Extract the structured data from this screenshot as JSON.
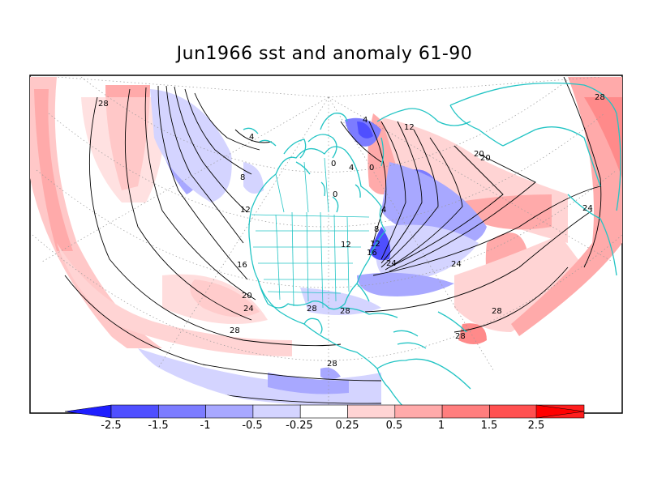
{
  "title": "Jun1966 sst and anomaly 61-90",
  "colorbar": {
    "labels": [
      "-2.5",
      "-1.5",
      "-1",
      "-0.5",
      "-0.25",
      "0.25",
      "0.5",
      "1",
      "1.5",
      "2.5"
    ],
    "colors": [
      "#1e1eff",
      "#4f4fff",
      "#7c7cff",
      "#a8a8ff",
      "#d4d4ff",
      "#ffffff",
      "#ffd4d4",
      "#ffaaaa",
      "#ff7e7e",
      "#ff5050",
      "#ff1e1e",
      "#ff0000"
    ]
  },
  "contour_labels": [
    "28",
    "4",
    "8",
    "12",
    "16",
    "20",
    "24",
    "28",
    "0",
    "4",
    "0",
    "0",
    "4",
    "12",
    "20",
    "20",
    "28",
    "28",
    "24",
    "28",
    "28",
    "28",
    "24",
    "4",
    "8",
    "12",
    "16",
    "12",
    "24",
    "28"
  ],
  "colors": {
    "coast": "#22c4c4",
    "contour": "#000000",
    "frame": "#000000"
  }
}
